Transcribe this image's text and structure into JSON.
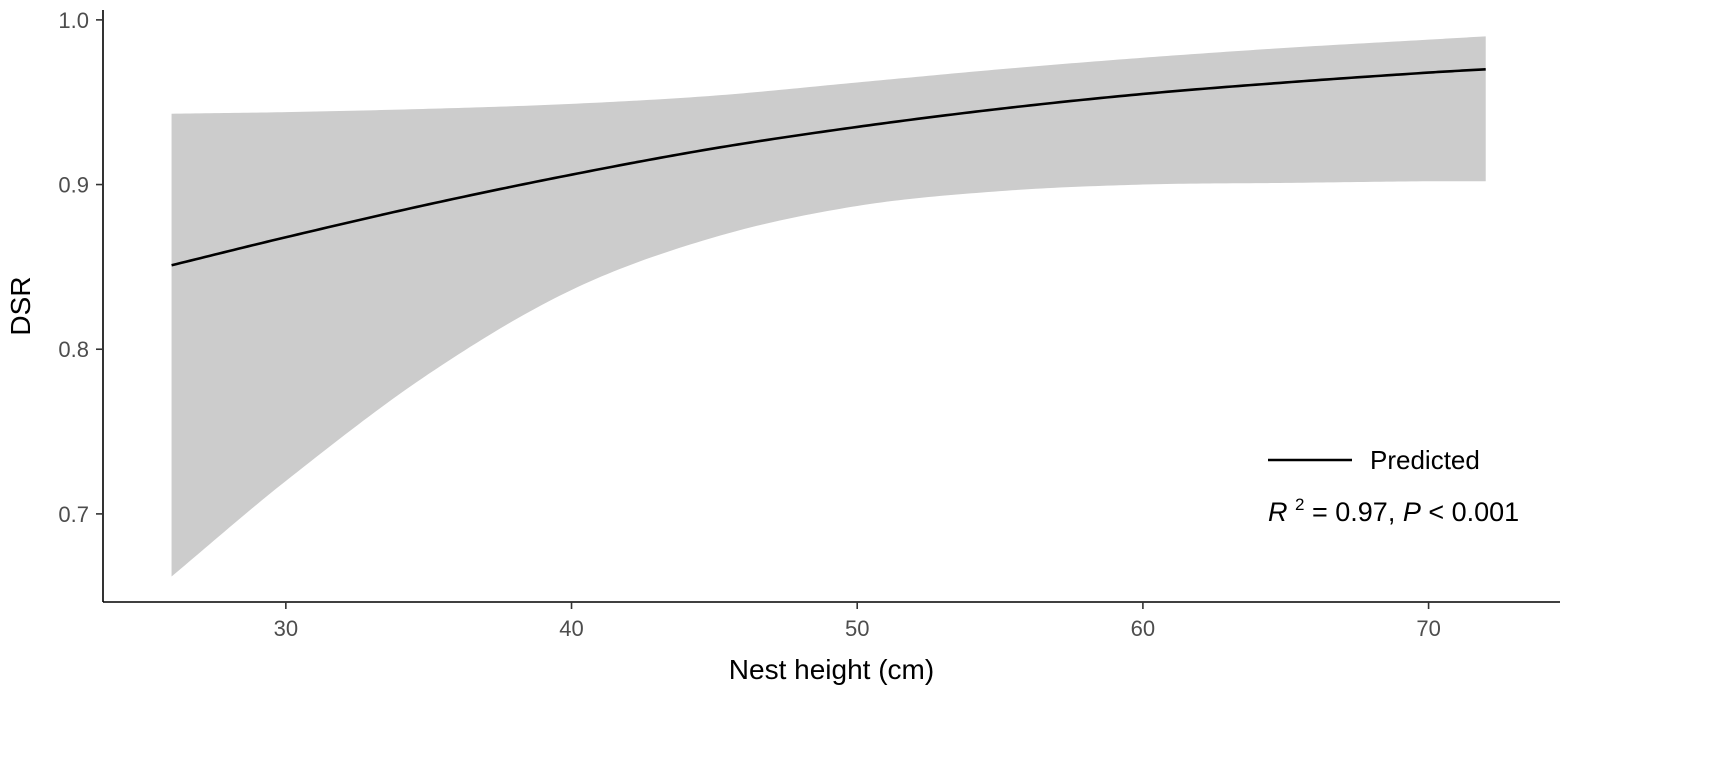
{
  "chart_data": {
    "type": "line",
    "title": "",
    "xlabel": "Nest height (cm)",
    "ylabel": "DSR",
    "xlim": [
      23.6,
      74.6
    ],
    "ylim": [
      0.6465,
      1.006
    ],
    "x_ticks": [
      30,
      40,
      50,
      60,
      70
    ],
    "y_ticks": [
      0.7,
      0.8,
      0.9,
      1.0
    ],
    "x_tick_labels": [
      "30",
      "40",
      "50",
      "60",
      "70"
    ],
    "y_tick_labels": [
      "0.7",
      "0.8",
      "0.9",
      "1.0"
    ],
    "grid": false,
    "legend_position": "bottom-right",
    "series": [
      {
        "name": "Predicted",
        "color": "#000000",
        "x": [
          26,
          30,
          35,
          40,
          45,
          50,
          55,
          60,
          65,
          70,
          72
        ],
        "y": [
          0.851,
          0.868,
          0.888,
          0.906,
          0.922,
          0.935,
          0.946,
          0.955,
          0.962,
          0.968,
          0.97
        ],
        "ci_lower": [
          0.662,
          0.72,
          0.785,
          0.836,
          0.868,
          0.887,
          0.896,
          0.9,
          0.901,
          0.902,
          0.902
        ],
        "ci_upper": [
          0.943,
          0.944,
          0.946,
          0.949,
          0.954,
          0.962,
          0.97,
          0.977,
          0.983,
          0.988,
          0.99
        ],
        "ci_color": "#cccccc"
      }
    ],
    "annotation": {
      "r_symbol": "R",
      "r_exponent": "2",
      "r_value": " = 0.97, ",
      "p_symbol": "P",
      "p_value": " < 0.001"
    }
  }
}
